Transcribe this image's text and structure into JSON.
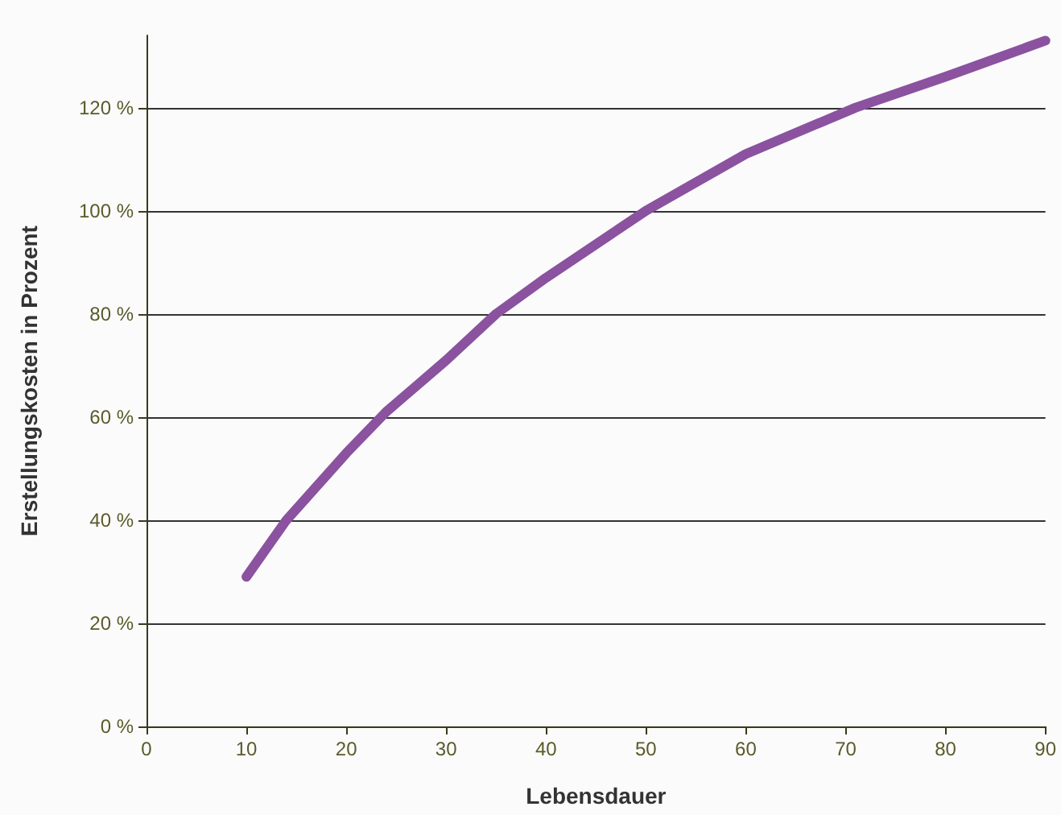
{
  "chart_data": {
    "type": "line",
    "xlabel": "Lebensdauer",
    "ylabel": "Erstellungskosten in Prozent",
    "series": [
      {
        "color": "#8b52a0",
        "x": [
          10,
          14,
          20,
          24,
          30,
          35,
          40,
          50,
          60,
          71,
          80,
          90
        ],
        "values": [
          29,
          40,
          53,
          61,
          71,
          80,
          87,
          100,
          111,
          120,
          126,
          133
        ]
      }
    ],
    "xlim": [
      0,
      90
    ],
    "xticks": [
      0,
      10,
      20,
      30,
      40,
      50,
      60,
      70,
      80,
      90
    ],
    "ylim": [
      0,
      134
    ],
    "yticks": [
      {
        "value": 0,
        "label": "0 %"
      },
      {
        "value": 20,
        "label": "20 %"
      },
      {
        "value": 40,
        "label": "40 %"
      },
      {
        "value": 60,
        "label": "60 %"
      },
      {
        "value": 80,
        "label": "80 %"
      },
      {
        "value": 100,
        "label": "100 %"
      },
      {
        "value": 120,
        "label": "120 %"
      }
    ],
    "grid": "y",
    "marker": "none",
    "line_style": "solid"
  }
}
